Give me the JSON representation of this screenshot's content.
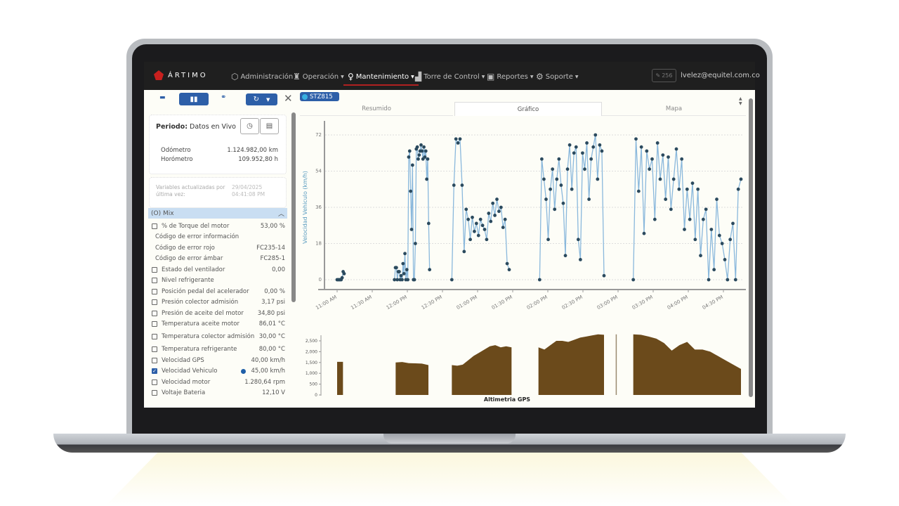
{
  "brand": "ÁRTIMO",
  "nav": {
    "items": [
      {
        "label": "Administración",
        "icon": "cube-icon",
        "dropdown": false
      },
      {
        "label": "Operación",
        "icon": "worker-icon",
        "dropdown": true
      },
      {
        "label": "Mantenimiento",
        "icon": "lightbulb-icon",
        "dropdown": true,
        "active": true
      },
      {
        "label": "Torre de Control",
        "icon": "building-icon",
        "dropdown": true
      },
      {
        "label": "Reportes",
        "icon": "report-icon",
        "dropdown": true
      },
      {
        "label": "Soporte",
        "icon": "gear-icon",
        "dropdown": true
      }
    ],
    "badge_count": "256",
    "user_email": "lvelez@equitel.com.co"
  },
  "sidebar": {
    "periodo_label": "Periodo:",
    "periodo_value": "Datos en Vivo",
    "odometro_label": "Odómetro",
    "odometro_value": "1.124.982,00 km",
    "horometro_label": "Horómetro",
    "horometro_value": "109.952,80 h",
    "updated_label": "Variables actualizadas por última vez:",
    "updated_date": "29/04/2025",
    "updated_time": "04:41:08 PM",
    "group_label": "(O) Mix",
    "variables": [
      {
        "label": "% de Torque del motor",
        "value": "53,00 %",
        "checkbox": true,
        "checked": false
      },
      {
        "label": "Código de error información",
        "value": "",
        "checkbox": false
      },
      {
        "label": "Código de error rojo",
        "value": "FC235-14",
        "checkbox": false
      },
      {
        "label": "Código de error ámbar",
        "value": "FC285-1",
        "checkbox": false
      },
      {
        "label": "Estado del ventilador",
        "value": "0,00",
        "checkbox": true,
        "checked": false
      },
      {
        "label": "Nivel refrigerante",
        "value": "",
        "checkbox": true,
        "checked": false
      },
      {
        "label": "Posición pedal del acelerador",
        "value": "0,00 %",
        "checkbox": true,
        "checked": false
      },
      {
        "label": "Presión colector admisión",
        "value": "3,17 psi",
        "checkbox": true,
        "checked": false
      },
      {
        "label": "Presión de aceite del motor",
        "value": "34,80 psi",
        "checkbox": true,
        "checked": false
      },
      {
        "label": "Temperatura aceite motor",
        "value": "86,01 °C",
        "checkbox": true,
        "checked": false
      },
      {
        "label": "Temperatura colector admisión",
        "value": "30,00 °C",
        "checkbox": true,
        "checked": false
      },
      {
        "label": "Temperatura refrigerante",
        "value": "80,00 °C",
        "checkbox": true,
        "checked": false
      },
      {
        "label": "Velocidad GPS",
        "value": "40,00 km/h",
        "checkbox": true,
        "checked": false
      },
      {
        "label": "Velocidad Vehiculo",
        "value": "45,00 km/h",
        "checkbox": true,
        "checked": true,
        "series_color": "#1f5fa8"
      },
      {
        "label": "Velocidad motor",
        "value": "1.280,64 rpm",
        "checkbox": true,
        "checked": false
      },
      {
        "label": "Voltaje Bateria",
        "value": "12,10 V",
        "checkbox": true,
        "checked": false
      }
    ]
  },
  "main": {
    "vehicle": "STZ815",
    "tabs": [
      {
        "label": "Resumido"
      },
      {
        "label": "Gráfico",
        "active": true
      },
      {
        "label": "Mapa"
      }
    ]
  },
  "colors": {
    "accent": "#2d5fa8",
    "nav_bg": "#1f1f1f",
    "line": "#8ab8dc",
    "point": "#2b4a5e",
    "area": "#6b4a1b"
  },
  "chart_data": [
    {
      "type": "line",
      "ylabel": "Velocidad Vehiculo (km/h)",
      "ylim": [
        0,
        78
      ],
      "yticks": [
        0,
        18,
        36,
        54,
        72
      ],
      "grid": true,
      "xticks": [
        "11:00 AM",
        "11:30 AM",
        "12:00 PM",
        "12:30 PM",
        "01:00 PM",
        "01:30 PM",
        "02:00 PM",
        "02:30 PM",
        "03:00 PM",
        "03:30 PM",
        "04:00 PM",
        "04:30 PM"
      ],
      "segments": [
        {
          "start": "11:00",
          "end": "11:06",
          "values": [
            0,
            0,
            0,
            0,
            0,
            1,
            4,
            3
          ]
        },
        {
          "start": "11:49",
          "end": "12:19",
          "values": [
            0,
            6,
            6,
            0,
            4,
            4,
            0,
            2,
            0,
            8,
            3,
            13,
            0,
            5,
            0,
            61,
            64,
            44,
            25,
            57,
            0,
            0,
            18,
            65,
            66,
            60,
            62,
            64,
            67,
            64,
            60,
            66,
            61,
            64,
            50,
            60,
            28,
            5
          ]
        },
        {
          "start": "12:38",
          "end": "13:27",
          "values": [
            0,
            47,
            70,
            68,
            70,
            47,
            14,
            35,
            30,
            20,
            31,
            24,
            28,
            22,
            30,
            27,
            25,
            20,
            33,
            29,
            38,
            32,
            40,
            34,
            36,
            26,
            30,
            8,
            5
          ]
        },
        {
          "start": "13:53",
          "end": "14:48",
          "values": [
            0,
            60,
            50,
            40,
            20,
            45,
            55,
            35,
            50,
            60,
            47,
            38,
            12,
            55,
            67,
            45,
            63,
            66,
            20,
            10,
            63,
            55,
            68,
            40,
            60,
            66,
            72,
            50,
            67,
            64,
            2
          ]
        },
        {
          "start": "15:13",
          "end": "16:45",
          "values": [
            0,
            70,
            44,
            66,
            23,
            64,
            55,
            60,
            30,
            68,
            50,
            62,
            40,
            61,
            35,
            50,
            65,
            45,
            60,
            25,
            45,
            30,
            48,
            20,
            45,
            12,
            30,
            35,
            0,
            25,
            5,
            40,
            22,
            18,
            10,
            0,
            20,
            28,
            0,
            45,
            50
          ]
        }
      ]
    },
    {
      "type": "area",
      "xlabel": "Altimetria GPS",
      "ylim": [
        0,
        2800
      ],
      "yticks": [
        "0",
        "500",
        "1,000",
        "1,500",
        "2,000",
        "2,500"
      ],
      "segments": [
        {
          "start": "11:00",
          "end": "11:05",
          "values": [
            1530,
            1530
          ]
        },
        {
          "start": "11:50",
          "end": "12:18",
          "values": [
            1500,
            1520,
            1470,
            1460,
            1450,
            1380
          ]
        },
        {
          "start": "12:38",
          "end": "13:29",
          "values": [
            1380,
            1350,
            1400,
            1600,
            1800,
            1950,
            2100,
            2250,
            2300,
            2200,
            2250,
            2200
          ]
        },
        {
          "start": "13:52",
          "end": "14:48",
          "values": [
            2200,
            2100,
            2300,
            2500,
            2500,
            2450,
            2550,
            2650,
            2700,
            2750,
            2800,
            2780
          ]
        },
        {
          "start": "14:58",
          "end": "14:59",
          "values": [
            2800,
            2800
          ]
        },
        {
          "start": "15:13",
          "end": "16:45",
          "values": [
            2800,
            2780,
            2700,
            2600,
            2400,
            2050,
            2300,
            2450,
            2100,
            2100,
            2000,
            1800,
            1600,
            1400,
            1200
          ]
        }
      ]
    }
  ]
}
